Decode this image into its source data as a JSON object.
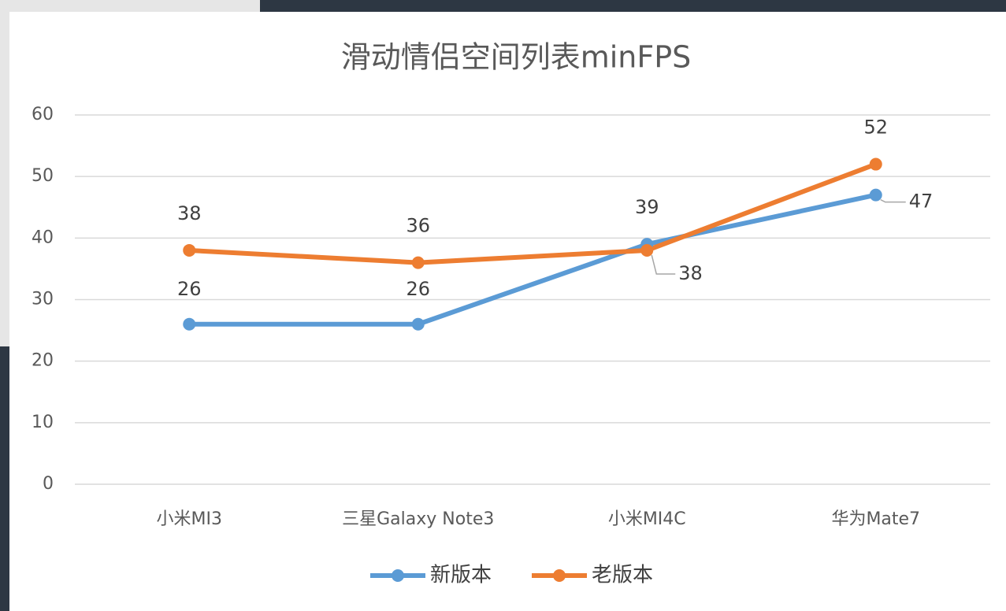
{
  "chart_data": {
    "type": "line",
    "title": "滑动情侣空间列表minFPS",
    "categories": [
      "小米MI3",
      "三星Galaxy Note3",
      "小米MI4C",
      "华为Mate7"
    ],
    "series": [
      {
        "name": "新版本",
        "color": "#5b9bd5",
        "values": [
          26,
          26,
          39,
          47
        ]
      },
      {
        "name": "老版本",
        "color": "#ed7d31",
        "values": [
          38,
          36,
          38,
          52
        ]
      }
    ],
    "ylim": [
      0,
      60
    ],
    "yticks": [
      0,
      10,
      20,
      30,
      40,
      50,
      60
    ],
    "grid": true,
    "legend": "bottom"
  }
}
